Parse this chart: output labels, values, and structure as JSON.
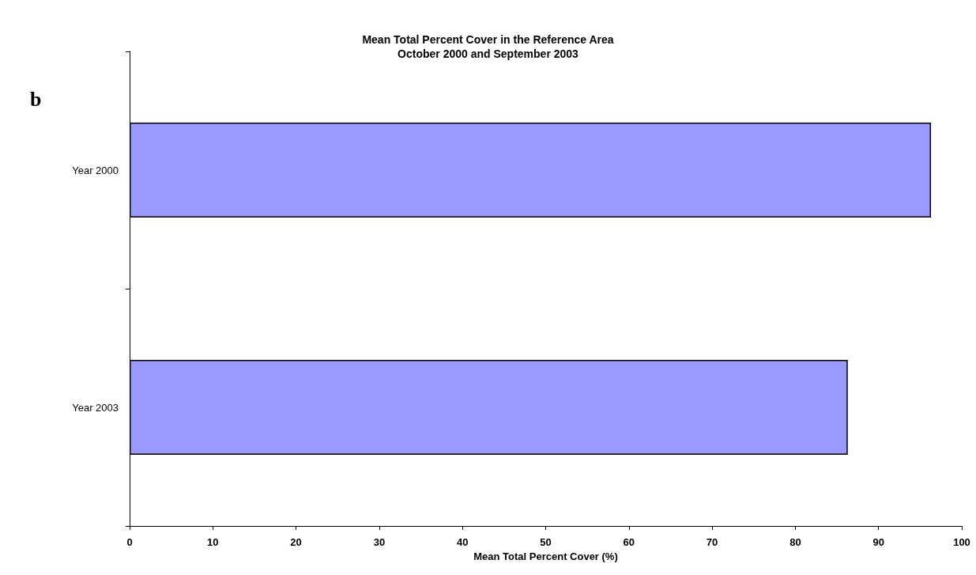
{
  "chart_data": {
    "type": "bar",
    "orientation": "horizontal",
    "title": "Mean Total Percent Cover in the Reference Area",
    "subtitle": "October 2000 and September 2003",
    "xlabel": "Mean Total Percent Cover (%)",
    "categories": [
      "Year 2000",
      "Year 2003"
    ],
    "values": [
      96.3,
      86.3
    ],
    "color": "#9999ff",
    "xlim": [
      0,
      100
    ],
    "xticks": [
      0,
      10,
      20,
      30,
      40,
      50,
      60,
      70,
      80,
      90,
      100
    ],
    "grid": false,
    "annotations": [
      "b"
    ]
  }
}
